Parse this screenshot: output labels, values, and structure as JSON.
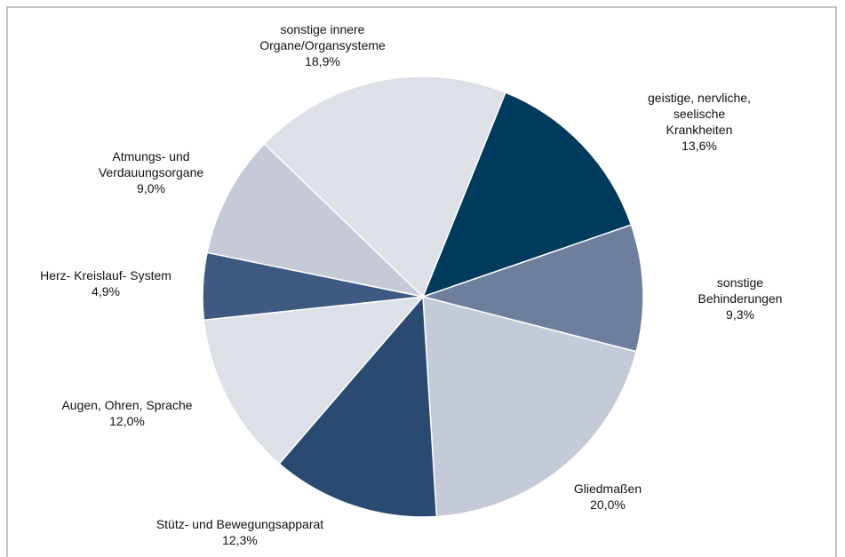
{
  "chart_data": {
    "type": "pie",
    "categories": [
      "geistige, nervliche, seelische\nKrankheiten",
      "sonstige Behinderungen",
      "Gliedmaßen",
      "Stütz- und Bewegungsapparat",
      "Augen, Ohren, Sprache",
      "Herz- Kreislauf- System",
      "Atmungs- und\nVerdauungsorgane",
      "sonstige innere\nOrgane/Organsysteme"
    ],
    "values": [
      13.6,
      9.3,
      20.0,
      12.3,
      12.0,
      4.9,
      9.0,
      18.9
    ],
    "value_labels": [
      "13,6%",
      "9,3%",
      "20,0%",
      "12,3%",
      "12,0%",
      "4,9%",
      "9,0%",
      "18,9%"
    ],
    "colors": [
      "#003a5c",
      "#6e7f9e",
      "#c5cad8",
      "#2a4a72",
      "#dde0e6",
      "#3f5a80",
      "#c5c9d8",
      "#dde0e6"
    ]
  }
}
